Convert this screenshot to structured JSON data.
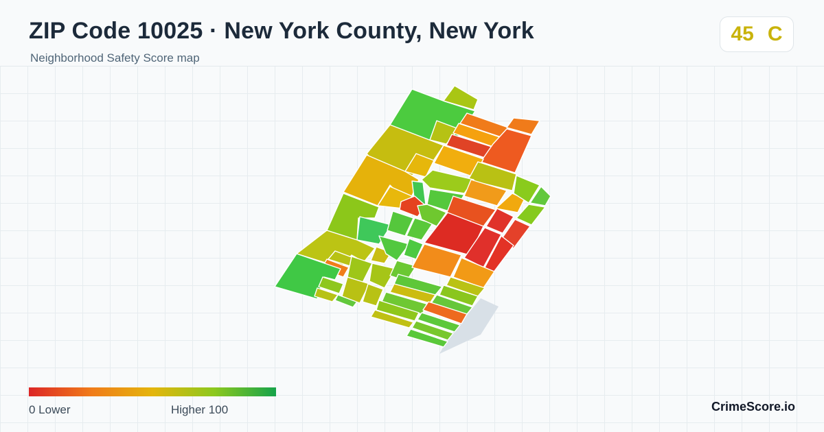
{
  "header": {
    "title": "ZIP Code 10025 · New York County, New York",
    "subtitle": "Neighborhood Safety Score map"
  },
  "score": {
    "value": "45",
    "grade": "C",
    "color": "#c9b30b"
  },
  "legend": {
    "low_label": "0  Lower",
    "high_label": "Higher  100",
    "colors": [
      "#dc2626",
      "#f07b1a",
      "#e4b50c",
      "#8cc81e",
      "#16a34a"
    ]
  },
  "brand": "CrimeScore.io",
  "map": {
    "outside_area_color": "#d8e0e7",
    "grid_color": "#e6ecef"
  }
}
